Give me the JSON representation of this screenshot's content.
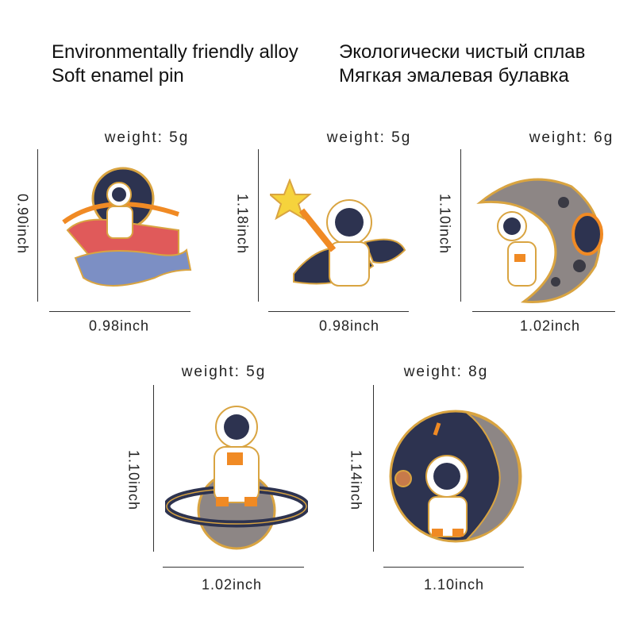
{
  "header": {
    "en_line1": "Environmentally friendly alloy",
    "en_line2": "Soft enamel pin",
    "ru_line1": "Экологически чистый сплав",
    "ru_line2": "Мягкая эмалевая булавка"
  },
  "pins": [
    {
      "weight": "weight:  5g",
      "height": "0.90inch",
      "width": "0.98inch",
      "subject": "astronaut-on-whale"
    },
    {
      "weight": "weight:  5g",
      "height": "1.18inch",
      "width": "0.98inch",
      "subject": "astronaut-holding-star"
    },
    {
      "weight": "weight:  6g",
      "height": "1.10inch",
      "width": "1.02inch",
      "subject": "astronaut-on-moon"
    },
    {
      "weight": "weight:  5g",
      "height": "1.10inch",
      "width": "1.02inch",
      "subject": "astronaut-on-planet"
    },
    {
      "weight": "weight:  8g",
      "height": "1.14inch",
      "width": "1.10inch",
      "subject": "astronaut-in-moon-circle"
    }
  ],
  "colors": {
    "gold": "#d9a441",
    "navy": "#2d3350",
    "orange": "#f08a24",
    "grey": "#8d8685"
  }
}
